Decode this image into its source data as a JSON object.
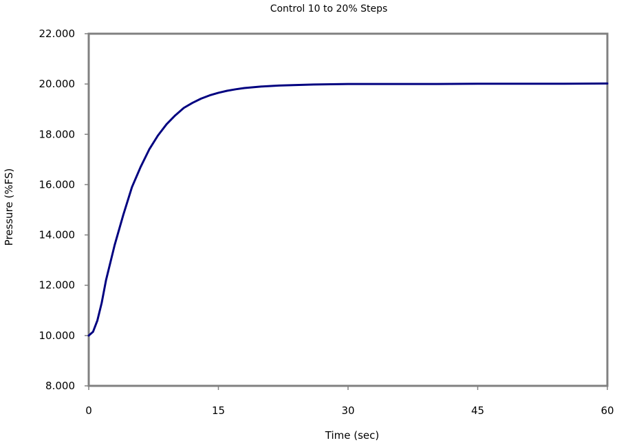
{
  "chart_data": {
    "type": "line",
    "title": "Control 10 to 20% Steps",
    "xlabel": "Time (sec)",
    "ylabel": "Pressure (%FS)",
    "xlim": [
      0,
      60
    ],
    "ylim": [
      8,
      22
    ],
    "x_ticks": [
      "0",
      "15",
      "30",
      "45",
      "60"
    ],
    "y_ticks": [
      "8.000",
      "10.000",
      "12.000",
      "14.000",
      "16.000",
      "18.000",
      "20.000",
      "22.000"
    ],
    "grid": false,
    "legend": "none",
    "series": [
      {
        "color": "#000080",
        "x": [
          0,
          0.5,
          1,
          1.5,
          2,
          3,
          4,
          5,
          6,
          7,
          8,
          9,
          10,
          11,
          12,
          13,
          14,
          15,
          16,
          17,
          18,
          20,
          22,
          24,
          26,
          28,
          30,
          35,
          40,
          45,
          50,
          55,
          60
        ],
        "y": [
          10.0,
          10.15,
          10.6,
          11.3,
          12.2,
          13.6,
          14.8,
          15.9,
          16.7,
          17.4,
          17.95,
          18.4,
          18.75,
          19.05,
          19.25,
          19.42,
          19.55,
          19.65,
          19.73,
          19.79,
          19.84,
          19.9,
          19.94,
          19.96,
          19.98,
          19.99,
          20.0,
          20.0,
          20.0,
          20.01,
          20.01,
          20.01,
          20.02
        ]
      }
    ]
  }
}
